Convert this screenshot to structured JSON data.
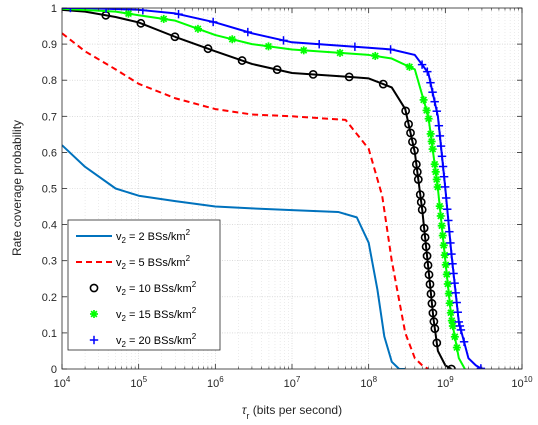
{
  "chart_data": {
    "type": "line",
    "xlabel_symbol": "τ",
    "xlabel_sub": "r",
    "xlabel_rest": " (bits per second)",
    "ylabel": "Rate coverage probability",
    "xscale": "log",
    "xlim": [
      10000,
      10000000000
    ],
    "ylim": [
      0,
      1
    ],
    "grid": true,
    "legend_position": "bottom-left",
    "x_ticks": [
      {
        "base": "10",
        "exp": "4"
      },
      {
        "base": "10",
        "exp": "5"
      },
      {
        "base": "10",
        "exp": "6"
      },
      {
        "base": "10",
        "exp": "7"
      },
      {
        "base": "10",
        "exp": "8"
      },
      {
        "base": "10",
        "exp": "9"
      },
      {
        "base": "10",
        "exp": "10"
      }
    ],
    "y_ticks": [
      "0",
      "0.1",
      "0.2",
      "0.3",
      "0.4",
      "0.5",
      "0.6",
      "0.7",
      "0.8",
      "0.9",
      "1"
    ],
    "series": [
      {
        "name_main": "v",
        "name_sub": "2",
        "name_mid": " = 2 BSs/km",
        "name_sup": "2",
        "color": "#0072bd",
        "style": "solid",
        "marker": "none",
        "points": [
          [
            10000,
            0.62
          ],
          [
            20000,
            0.56
          ],
          [
            50000,
            0.5
          ],
          [
            100000,
            0.48
          ],
          [
            300000,
            0.465
          ],
          [
            1000000,
            0.45
          ],
          [
            3000000,
            0.445
          ],
          [
            10000000,
            0.44
          ],
          [
            40000000,
            0.435
          ],
          [
            70000000,
            0.42
          ],
          [
            100000000,
            0.35
          ],
          [
            130000000,
            0.22
          ],
          [
            160000000,
            0.09
          ],
          [
            200000000,
            0.02
          ],
          [
            250000000,
            0.0
          ],
          [
            300000000,
            0.0
          ]
        ]
      },
      {
        "name_main": "v",
        "name_sub": "2",
        "name_mid": " = 5 BSs/km",
        "name_sup": "2",
        "color": "#ff0000",
        "style": "dashed",
        "marker": "none",
        "points": [
          [
            10000,
            0.93
          ],
          [
            20000,
            0.88
          ],
          [
            50000,
            0.83
          ],
          [
            100000,
            0.79
          ],
          [
            300000,
            0.75
          ],
          [
            1000000,
            0.72
          ],
          [
            3000000,
            0.705
          ],
          [
            10000000,
            0.7
          ],
          [
            50000000,
            0.69
          ],
          [
            100000000,
            0.61
          ],
          [
            150000000,
            0.48
          ],
          [
            200000000,
            0.3
          ],
          [
            300000000,
            0.1
          ],
          [
            400000000,
            0.03
          ],
          [
            500000000,
            0.01
          ],
          [
            600000000,
            0.0
          ]
        ]
      },
      {
        "name_main": "v",
        "name_sub": "2",
        "name_mid": " = 10 BSs/km",
        "name_sup": "2",
        "color": "#000000",
        "style": "solid",
        "marker": "circle",
        "points": [
          [
            10000,
            0.995
          ],
          [
            20000,
            0.99
          ],
          [
            50000,
            0.975
          ],
          [
            100000,
            0.96
          ],
          [
            300000,
            0.92
          ],
          [
            1000000,
            0.88
          ],
          [
            3000000,
            0.845
          ],
          [
            10000000,
            0.82
          ],
          [
            50000000,
            0.81
          ],
          [
            100000000,
            0.805
          ],
          [
            200000000,
            0.78
          ],
          [
            300000000,
            0.72
          ],
          [
            400000000,
            0.6
          ],
          [
            500000000,
            0.44
          ],
          [
            600000000,
            0.28
          ],
          [
            700000000,
            0.14
          ],
          [
            800000000,
            0.05
          ],
          [
            1000000000,
            0.01
          ],
          [
            1200000000,
            0.0
          ]
        ]
      },
      {
        "name_main": "v",
        "name_sub": "2",
        "name_mid": " = 15 BSs/km",
        "name_sup": "2",
        "color": "#00ff00",
        "style": "solid",
        "marker": "asterisk",
        "points": [
          [
            10000,
            0.998
          ],
          [
            50000,
            0.99
          ],
          [
            100000,
            0.98
          ],
          [
            300000,
            0.965
          ],
          [
            1000000,
            0.925
          ],
          [
            3000000,
            0.9
          ],
          [
            10000000,
            0.885
          ],
          [
            100000000,
            0.87
          ],
          [
            200000000,
            0.86
          ],
          [
            400000000,
            0.83
          ],
          [
            600000000,
            0.7
          ],
          [
            800000000,
            0.5
          ],
          [
            1000000000,
            0.3
          ],
          [
            1200000000,
            0.14
          ],
          [
            1500000000,
            0.03
          ],
          [
            1800000000,
            0.0
          ]
        ]
      },
      {
        "name_main": "v",
        "name_sub": "2",
        "name_mid": " = 20 BSs/km",
        "name_sup": "2",
        "color": "#0000ff",
        "style": "solid",
        "marker": "plus",
        "points": [
          [
            10000,
            1.0
          ],
          [
            20000,
            1.0
          ],
          [
            100000,
            0.995
          ],
          [
            300000,
            0.985
          ],
          [
            1000000,
            0.96
          ],
          [
            3000000,
            0.93
          ],
          [
            10000000,
            0.905
          ],
          [
            100000000,
            0.89
          ],
          [
            200000000,
            0.885
          ],
          [
            400000000,
            0.87
          ],
          [
            600000000,
            0.82
          ],
          [
            800000000,
            0.7
          ],
          [
            1000000000,
            0.5
          ],
          [
            1200000000,
            0.32
          ],
          [
            1500000000,
            0.13
          ],
          [
            2000000000,
            0.03
          ],
          [
            2500000000,
            0.01
          ],
          [
            3000000000,
            0.0
          ]
        ]
      }
    ]
  }
}
